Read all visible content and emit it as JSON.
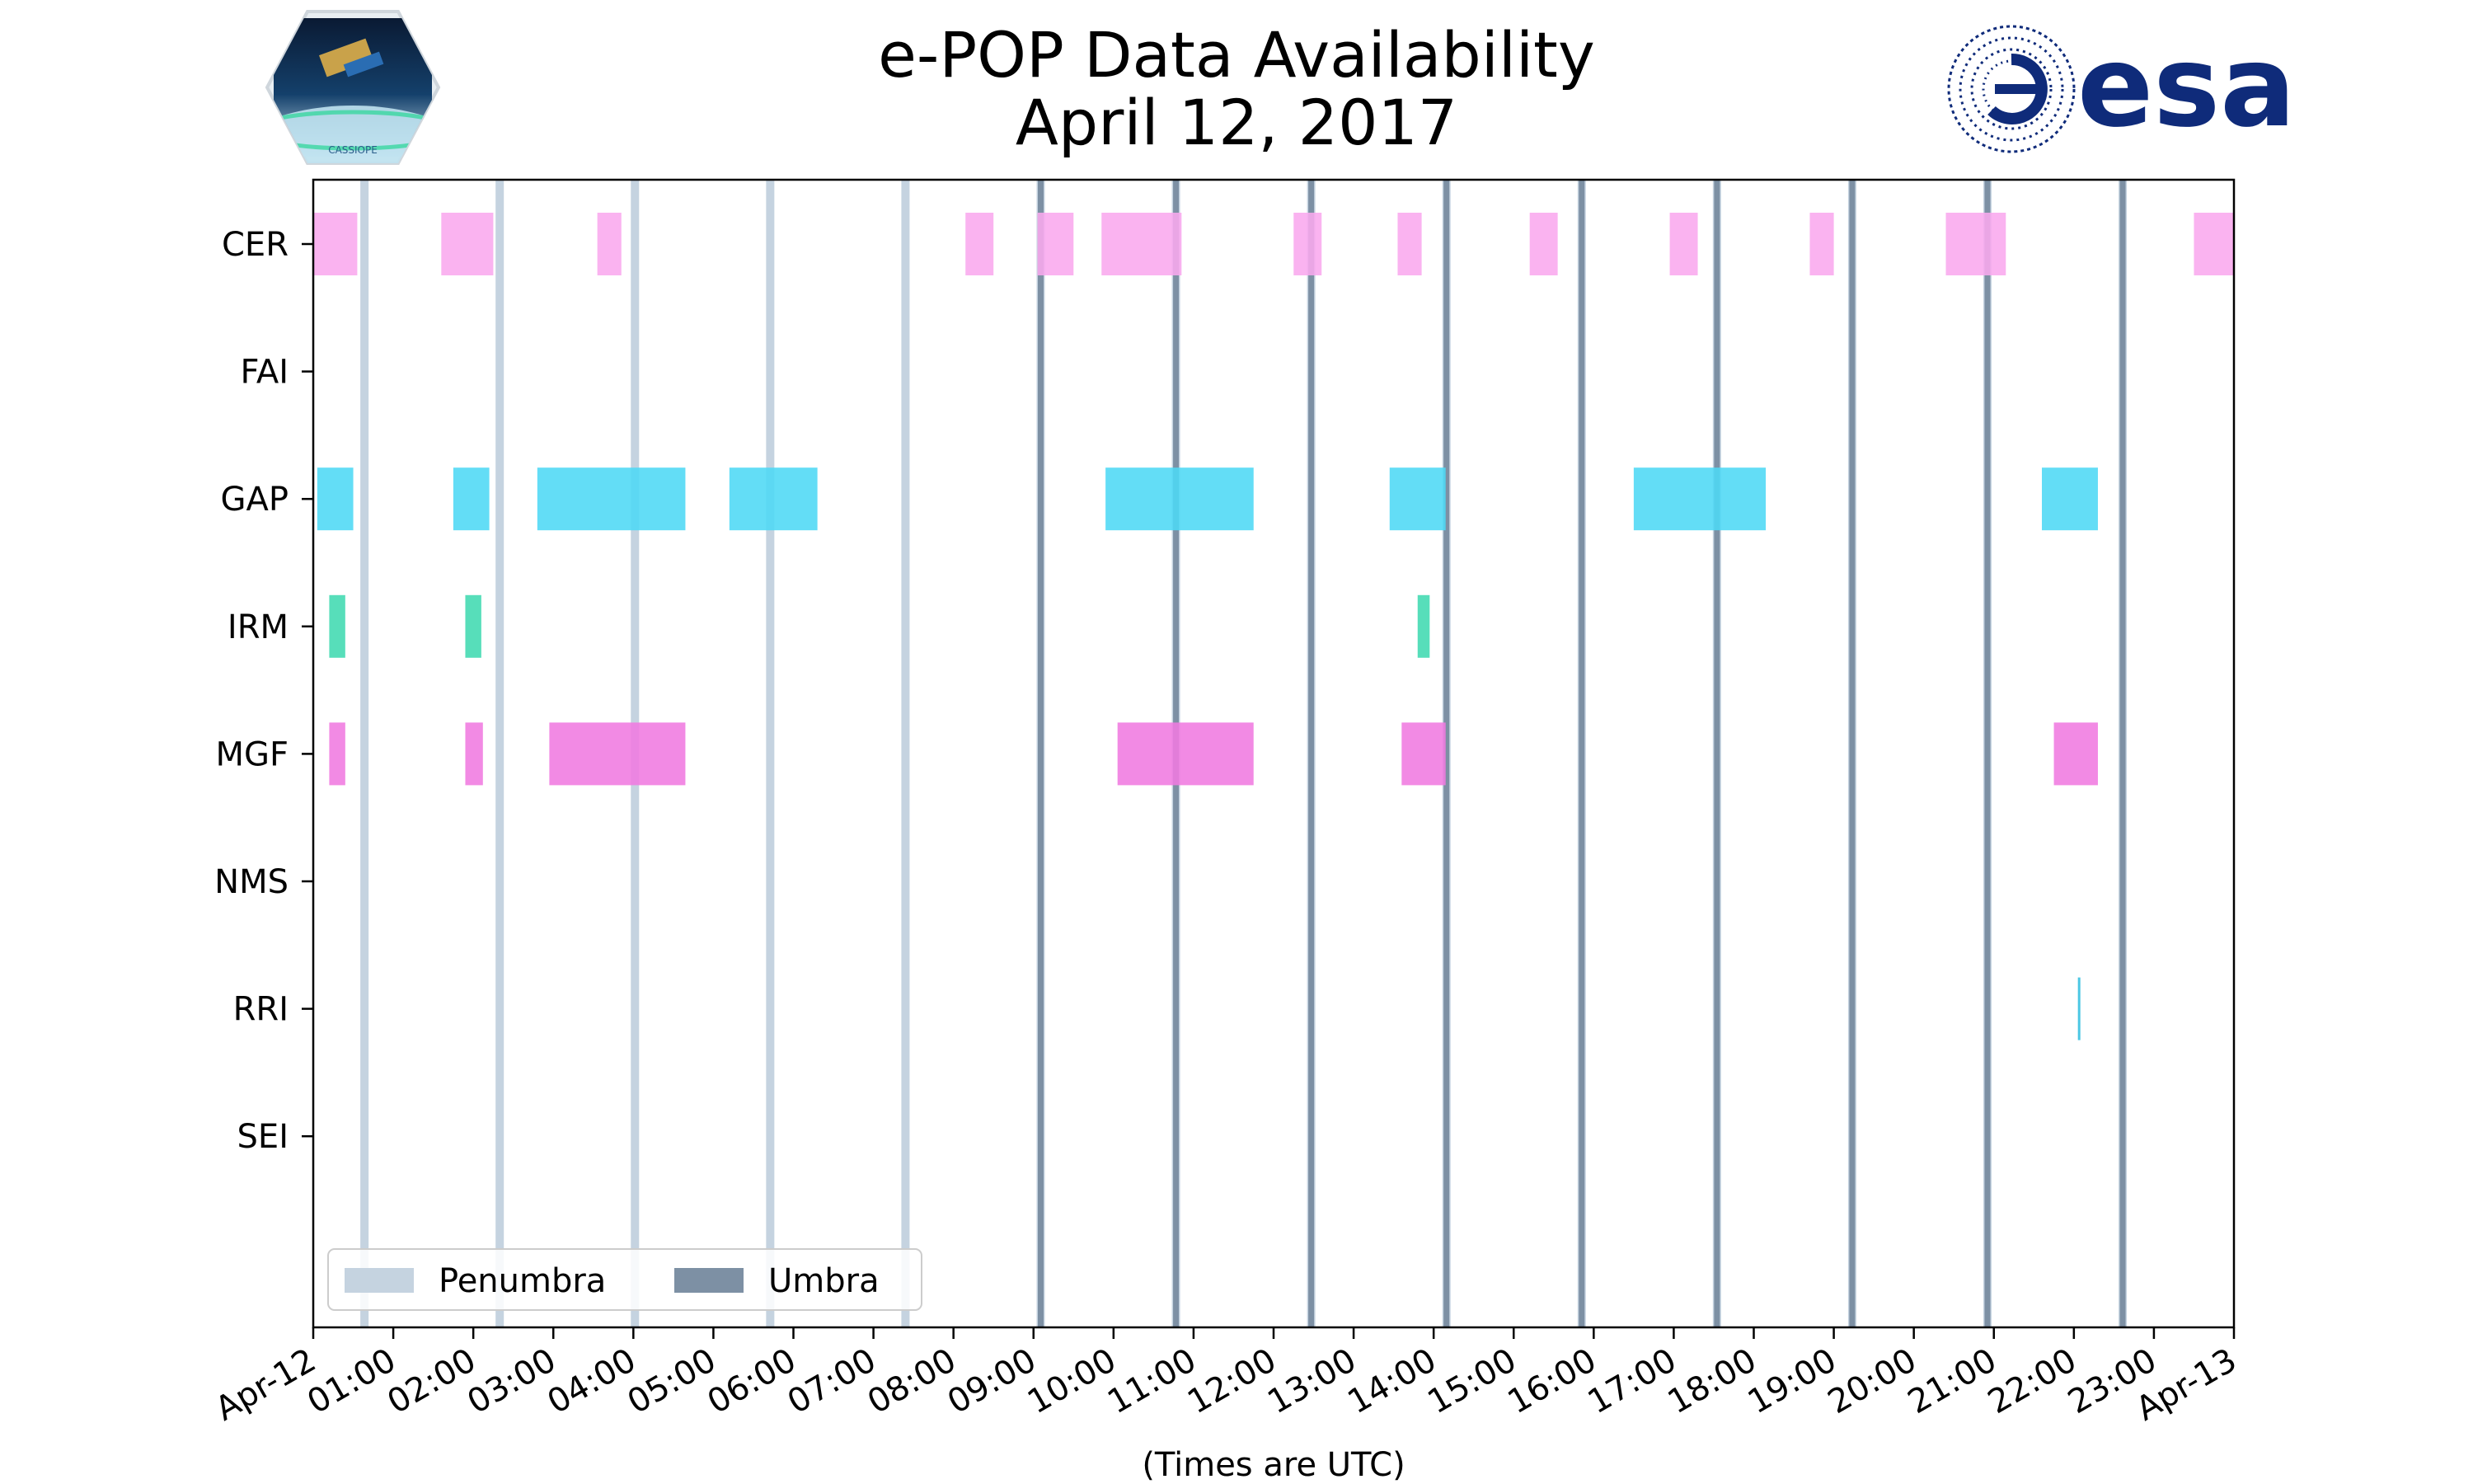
{
  "header": {
    "title_line1": "e-POP Data Availability",
    "title_line2": "April 12, 2017",
    "left_logo_text": "CASSIOPE",
    "right_logo_text": "esa"
  },
  "colors": {
    "CER": "#f9a8ee",
    "GAP": "#4dd8f5",
    "IRM": "#40d9b0",
    "MGF": "#f07ae0",
    "RRI": "#33bfe0",
    "penumbra": "#c5d3e0",
    "umbra": "#7d90a4",
    "esa_blue": "#0f2b7a"
  },
  "chart_data": {
    "type": "timeline",
    "title": "e-POP Data Availability\nApril 12, 2017",
    "xlabel": "(Times are UTC)",
    "xlim": [
      0,
      24
    ],
    "x_unit": "hours UTC",
    "x_ticks": [
      {
        "h": 0,
        "label": "Apr-12"
      },
      {
        "h": 1,
        "label": "01:00"
      },
      {
        "h": 2,
        "label": "02:00"
      },
      {
        "h": 3,
        "label": "03:00"
      },
      {
        "h": 4,
        "label": "04:00"
      },
      {
        "h": 5,
        "label": "05:00"
      },
      {
        "h": 6,
        "label": "06:00"
      },
      {
        "h": 7,
        "label": "07:00"
      },
      {
        "h": 8,
        "label": "08:00"
      },
      {
        "h": 9,
        "label": "09:00"
      },
      {
        "h": 10,
        "label": "10:00"
      },
      {
        "h": 11,
        "label": "11:00"
      },
      {
        "h": 12,
        "label": "12:00"
      },
      {
        "h": 13,
        "label": "13:00"
      },
      {
        "h": 14,
        "label": "14:00"
      },
      {
        "h": 15,
        "label": "15:00"
      },
      {
        "h": 16,
        "label": "16:00"
      },
      {
        "h": 17,
        "label": "17:00"
      },
      {
        "h": 18,
        "label": "18:00"
      },
      {
        "h": 19,
        "label": "19:00"
      },
      {
        "h": 20,
        "label": "20:00"
      },
      {
        "h": 21,
        "label": "21:00"
      },
      {
        "h": 22,
        "label": "22:00"
      },
      {
        "h": 23,
        "label": "23:00"
      },
      {
        "h": 24,
        "label": "Apr-13"
      }
    ],
    "instruments": [
      "CER",
      "FAI",
      "GAP",
      "IRM",
      "MGF",
      "NMS",
      "RRI",
      "SEI"
    ],
    "intervals": {
      "CER": [
        [
          0.0,
          0.55
        ],
        [
          1.6,
          2.25
        ],
        [
          3.55,
          3.85
        ],
        [
          8.15,
          8.5
        ],
        [
          9.05,
          9.5
        ],
        [
          9.85,
          10.85
        ],
        [
          12.25,
          12.6
        ],
        [
          13.55,
          13.85
        ],
        [
          15.2,
          15.55
        ],
        [
          16.95,
          17.3
        ],
        [
          18.7,
          19.0
        ],
        [
          20.4,
          21.15
        ],
        [
          23.5,
          24.0
        ]
      ],
      "FAI": [],
      "GAP": [
        [
          0.05,
          0.5
        ],
        [
          1.75,
          2.2
        ],
        [
          2.8,
          4.65
        ],
        [
          5.2,
          6.3
        ],
        [
          9.9,
          11.75
        ],
        [
          13.45,
          14.15
        ],
        [
          16.5,
          18.15
        ],
        [
          21.6,
          22.3
        ]
      ],
      "IRM": [
        [
          0.2,
          0.4
        ],
        [
          1.9,
          2.1
        ],
        [
          13.8,
          13.95
        ]
      ],
      "MGF": [
        [
          0.2,
          0.4
        ],
        [
          1.9,
          2.12
        ],
        [
          2.95,
          4.65
        ],
        [
          10.05,
          11.75
        ],
        [
          13.6,
          14.15
        ],
        [
          21.75,
          22.3
        ]
      ],
      "NMS": [],
      "RRI": [
        [
          22.05,
          22.08
        ]
      ],
      "SEI": []
    },
    "penumbra_times": [
      0.64,
      2.33,
      4.02,
      5.71,
      7.4,
      9.09,
      10.78,
      12.47,
      14.16,
      15.85,
      17.54,
      19.23,
      20.92,
      22.61
    ],
    "umbra_times": [
      9.09,
      10.78,
      12.47,
      14.16,
      15.85,
      17.54,
      19.23,
      20.92,
      22.61
    ],
    "legend": {
      "position": "lower-left",
      "entries": [
        "Penumbra",
        "Umbra"
      ]
    }
  }
}
